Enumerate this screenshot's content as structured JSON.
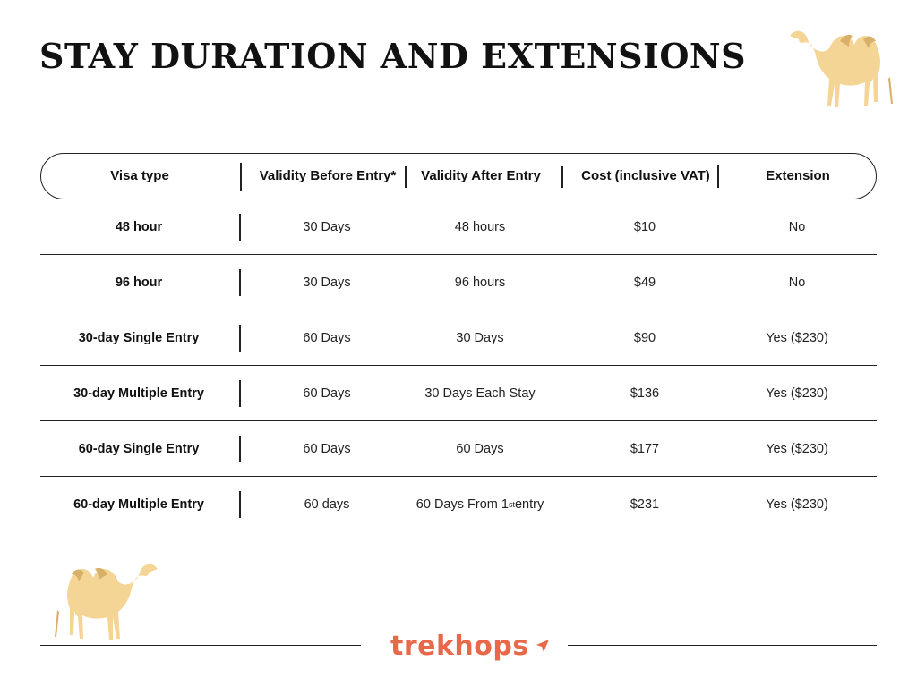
{
  "title": "STAY DURATION AND EXTENSIONS",
  "brand": {
    "name": "trekhops",
    "accent_color": "#e8694a"
  },
  "table": {
    "headers": [
      "Visa type",
      "Validity Before Entry*",
      "Validity After Entry",
      "Cost (inclusive VAT)",
      "Extension"
    ],
    "rows": [
      [
        "48 hour",
        "30 Days",
        "48 hours",
        "$10",
        "No"
      ],
      [
        "96 hour",
        "30 Days",
        "96 hours",
        "$49",
        "No"
      ],
      [
        "30-day Single Entry",
        "60 Days",
        "30 Days",
        "$90",
        "Yes ($230)"
      ],
      [
        "30-day Multiple Entry",
        "60 Days",
        "30 Days Each Stay",
        "$136",
        "Yes ($230)"
      ],
      [
        "60-day Single Entry",
        "60 Days",
        "60 Days",
        "$177",
        "Yes ($230)"
      ],
      [
        "60-day Multiple Entry",
        "60 days",
        "60 Days From 1st entry",
        "$231",
        "Yes ($230)"
      ]
    ],
    "last_row_cell_parts": {
      "before_sup": "60 Days From 1",
      "sup": "st",
      "after_sup": " entry"
    }
  },
  "icons": {
    "camel_top": "camel-icon",
    "camel_bottom": "camel-icon",
    "brand_arrow": "paper-plane-icon"
  },
  "colors": {
    "camel_body": "#f5d595",
    "camel_shade": "#d9b06a"
  }
}
